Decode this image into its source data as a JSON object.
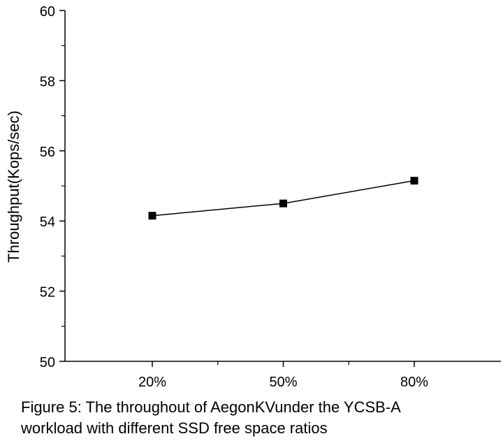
{
  "chart_data": {
    "type": "line",
    "categories": [
      "20%",
      "50%",
      "80%"
    ],
    "series": [
      {
        "values": [
          54.15,
          54.5,
          55.15
        ]
      }
    ],
    "ylabel": "Throughput(Kops/sec)",
    "xlabel": "",
    "ylim": [
      50,
      60
    ],
    "yticks": [
      50,
      52,
      54,
      56,
      58,
      60
    ],
    "grid": false,
    "marker": "square",
    "line_color": "#000000"
  },
  "caption": {
    "line1": "Figure 5: The throughout of AegonKVunder the YCSB-A",
    "line2": "workload with different SSD free space ratios"
  }
}
